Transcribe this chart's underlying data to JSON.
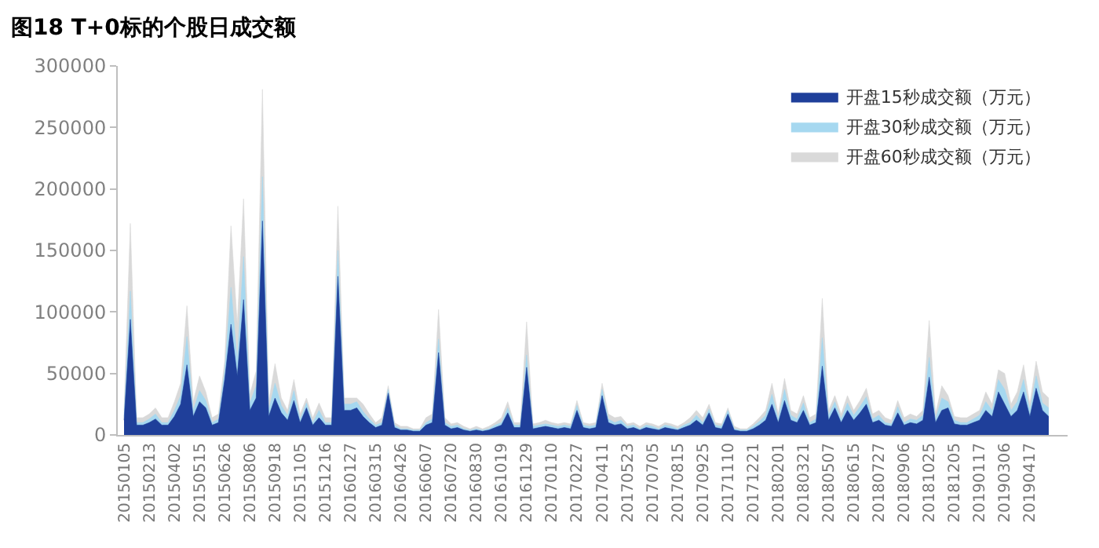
{
  "chart_data": {
    "type": "area",
    "title": "图18 T+0标的个股日成交额",
    "categories": [
      "20150105",
      null,
      null,
      null,
      "20150213",
      null,
      null,
      null,
      "20150402",
      null,
      null,
      null,
      "20150515",
      null,
      null,
      null,
      "20150626",
      null,
      null,
      null,
      "20150806",
      null,
      null,
      null,
      "20150918",
      null,
      null,
      null,
      "20151105",
      null,
      null,
      null,
      "20151216",
      null,
      null,
      null,
      "20160127",
      null,
      null,
      null,
      "20160315",
      null,
      null,
      null,
      "20160426",
      null,
      null,
      null,
      "20160607",
      null,
      null,
      null,
      "20160720",
      null,
      null,
      null,
      "20160830",
      null,
      null,
      null,
      "20161019",
      null,
      null,
      null,
      "20161129",
      null,
      null,
      null,
      "20170110",
      null,
      null,
      null,
      "20170227",
      null,
      null,
      null,
      "20170411",
      null,
      null,
      null,
      "20170523",
      null,
      null,
      null,
      "20170705",
      null,
      null,
      null,
      "20170815",
      null,
      null,
      null,
      "20170925",
      null,
      null,
      null,
      "20171110",
      null,
      null,
      null,
      "20171221",
      null,
      null,
      null,
      "20180201",
      null,
      null,
      null,
      "20180321",
      null,
      null,
      null,
      "20180507",
      null,
      null,
      null,
      "20180615",
      null,
      null,
      null,
      "20180727",
      null,
      null,
      null,
      "20180906",
      null,
      null,
      null,
      "20181025",
      null,
      null,
      null,
      "20181205",
      null,
      null,
      null,
      "20190117",
      null,
      null,
      null,
      "20190306",
      null,
      null,
      null,
      "20190417",
      null,
      null,
      null
    ],
    "series": [
      {
        "name": "开盘60秒成交额（万元）",
        "color": "#d9d9d9",
        "values": [
          20000,
          172000,
          14000,
          14000,
          17000,
          22000,
          14000,
          14000,
          27000,
          42000,
          105000,
          27000,
          48000,
          35000,
          14000,
          17000,
          60000,
          170000,
          90000,
          192000,
          33000,
          52000,
          281000,
          27000,
          58000,
          30000,
          20000,
          45000,
          17000,
          30000,
          14000,
          26000,
          14000,
          14000,
          186000,
          30000,
          30000,
          30000,
          25000,
          17000,
          10000,
          14000,
          40000,
          10000,
          7000,
          7000,
          5000,
          5000,
          14000,
          17000,
          102000,
          14000,
          9000,
          10000,
          7000,
          5000,
          7000,
          5000,
          7000,
          10000,
          14000,
          27000,
          10000,
          10000,
          92000,
          9000,
          10000,
          12000,
          10000,
          9000,
          10000,
          9000,
          28000,
          10000,
          9000,
          10000,
          42000,
          17000,
          14000,
          15000,
          9000,
          10000,
          7000,
          10000,
          9000,
          7000,
          10000,
          9000,
          7000,
          10000,
          14000,
          20000,
          14000,
          25000,
          10000,
          9000,
          22000,
          7000,
          5000,
          5000,
          9000,
          14000,
          20000,
          42000,
          17000,
          46000,
          20000,
          17000,
          32000,
          14000,
          17000,
          111000,
          20000,
          32000,
          17000,
          32000,
          20000,
          28000,
          38000,
          17000,
          20000,
          14000,
          12000,
          28000,
          14000,
          17000,
          15000,
          20000,
          93000,
          17000,
          40000,
          32000,
          15000,
          14000,
          14000,
          17000,
          20000,
          35000,
          25000,
          53000,
          50000,
          25000,
          35000,
          57000,
          25000,
          60000,
          35000,
          30000
        ]
      },
      {
        "name": "开盘30秒成交额（万元）",
        "color": "#a6d8f0",
        "values": [
          15000,
          117000,
          10000,
          10000,
          13000,
          17000,
          10000,
          10000,
          20000,
          32000,
          80000,
          20000,
          36000,
          28000,
          10000,
          13000,
          52000,
          120000,
          60000,
          145000,
          26000,
          40000,
          210000,
          20000,
          42000,
          24000,
          16000,
          36000,
          13000,
          26000,
          10000,
          20000,
          10000,
          10000,
          150000,
          25000,
          25000,
          27000,
          19000,
          13000,
          8000,
          10000,
          37000,
          8000,
          5000,
          5000,
          4000,
          4000,
          10000,
          13000,
          78000,
          10000,
          7000,
          8000,
          5000,
          4000,
          5000,
          4000,
          5000,
          8000,
          10000,
          22000,
          8000,
          8000,
          65000,
          7000,
          8000,
          9000,
          8000,
          7000,
          8000,
          7000,
          24000,
          8000,
          7000,
          8000,
          37000,
          13000,
          10000,
          12000,
          7000,
          8000,
          5000,
          8000,
          7000,
          5000,
          8000,
          7000,
          5000,
          8000,
          10000,
          16000,
          10000,
          21000,
          8000,
          7000,
          20000,
          5000,
          4000,
          4000,
          7000,
          11000,
          16000,
          33000,
          13000,
          37000,
          16000,
          13000,
          26000,
          10000,
          13000,
          79000,
          16000,
          27000,
          13000,
          26000,
          16000,
          23000,
          31000,
          13000,
          16000,
          10000,
          9000,
          23000,
          10000,
          13000,
          12000,
          16000,
          63000,
          13000,
          30000,
          27000,
          12000,
          10000,
          10000,
          13000,
          16000,
          27000,
          20000,
          45000,
          37000,
          20000,
          27000,
          45000,
          20000,
          48000,
          26000,
          22000
        ]
      },
      {
        "name": "开盘15秒成交额（万元）",
        "color": "#1f3f9a",
        "values": [
          12000,
          94000,
          8000,
          8000,
          10000,
          13000,
          8000,
          8000,
          15000,
          25000,
          57000,
          15000,
          27000,
          22000,
          8000,
          10000,
          45000,
          90000,
          48000,
          110000,
          20000,
          30000,
          174000,
          15000,
          30000,
          18000,
          12000,
          28000,
          10000,
          22000,
          8000,
          14000,
          8000,
          8000,
          129000,
          20000,
          20000,
          22000,
          15000,
          10000,
          6000,
          8000,
          34000,
          6000,
          4000,
          4000,
          3000,
          3000,
          8000,
          10000,
          67000,
          8000,
          5000,
          6000,
          4000,
          3000,
          4000,
          3000,
          4000,
          6000,
          8000,
          18000,
          6000,
          6000,
          55000,
          5000,
          6000,
          7000,
          6000,
          5000,
          6000,
          5000,
          20000,
          6000,
          5000,
          6000,
          32000,
          10000,
          8000,
          9000,
          5000,
          6000,
          4000,
          6000,
          5000,
          4000,
          6000,
          5000,
          4000,
          6000,
          8000,
          12000,
          8000,
          18000,
          6000,
          5000,
          17000,
          4000,
          3000,
          3000,
          5000,
          8000,
          12000,
          25000,
          10000,
          28000,
          12000,
          10000,
          20000,
          8000,
          10000,
          56000,
          12000,
          22000,
          10000,
          20000,
          12000,
          18000,
          25000,
          10000,
          12000,
          8000,
          7000,
          18000,
          8000,
          10000,
          9000,
          12000,
          47000,
          10000,
          20000,
          22000,
          9000,
          8000,
          8000,
          10000,
          12000,
          20000,
          15000,
          35000,
          25000,
          15000,
          20000,
          35000,
          15000,
          38000,
          20000,
          15000
        ]
      }
    ],
    "ylim": [
      0,
      300000
    ],
    "yticks": [
      0,
      50000,
      100000,
      150000,
      200000,
      250000,
      300000
    ],
    "legend": "top right"
  }
}
